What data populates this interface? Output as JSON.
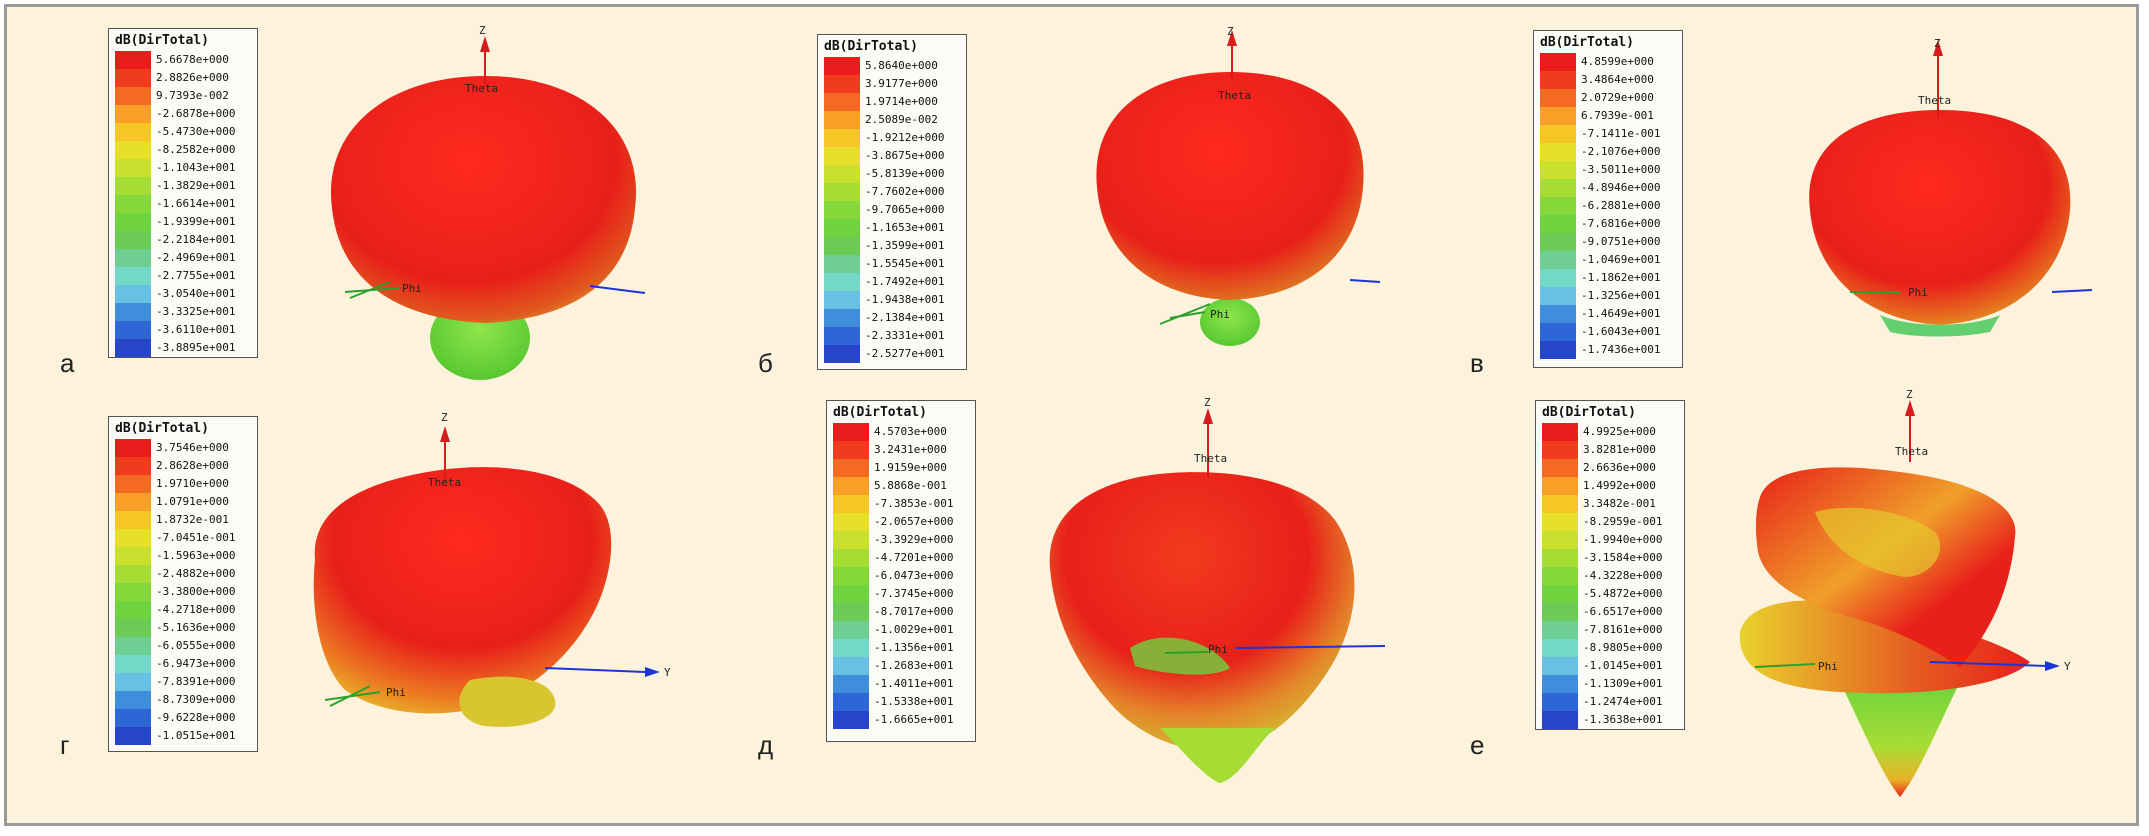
{
  "colors": {
    "scale": [
      "#ea1c1c",
      "#ef3b1e",
      "#f46a22",
      "#f79f26",
      "#f5c625",
      "#e7df29",
      "#c9e02e",
      "#a6dd34",
      "#86d83a",
      "#6fd33f",
      "#6bcb55",
      "#6fcf93",
      "#73d8c6",
      "#66c1e2",
      "#3f8ddb",
      "#2f66d6",
      "#2745c9"
    ],
    "frame": "#fdf3dc",
    "axis_z": "#d81b1b",
    "axis_y": "#1b34d8",
    "axis_x": "#2ca02c"
  },
  "axis_labels": {
    "z": "Z",
    "theta": "Theta",
    "phi": "Phi",
    "y": "Y"
  },
  "panels": [
    {
      "label": "а",
      "legend": {
        "title": "dB(DirTotal)",
        "ticks": [
          "5.6678e+000",
          "2.8826e+000",
          "9.7393e-002",
          "-2.6878e+000",
          "-5.4730e+000",
          "-8.2582e+000",
          "-1.1043e+001",
          "-1.3829e+001",
          "-1.6614e+001",
          "-1.9399e+001",
          "-2.2184e+001",
          "-2.4969e+001",
          "-2.7755e+001",
          "-3.0540e+001",
          "-3.3325e+001",
          "-3.6110e+001",
          "-3.8895e+001"
        ]
      }
    },
    {
      "label": "б",
      "legend": {
        "title": "dB(DirTotal)",
        "ticks": [
          "5.8640e+000",
          "3.9177e+000",
          "1.9714e+000",
          "2.5089e-002",
          "-1.9212e+000",
          "-3.8675e+000",
          "-5.8139e+000",
          "-7.7602e+000",
          "-9.7065e+000",
          "-1.1653e+001",
          "-1.3599e+001",
          "-1.5545e+001",
          "-1.7492e+001",
          "-1.9438e+001",
          "-2.1384e+001",
          "-2.3331e+001",
          "-2.5277e+001"
        ]
      }
    },
    {
      "label": "в",
      "legend": {
        "title": "dB(DirTotal)",
        "ticks": [
          "4.8599e+000",
          "3.4864e+000",
          "2.0729e+000",
          "6.7939e-001",
          "-7.1411e-001",
          "-2.1076e+000",
          "-3.5011e+000",
          "-4.8946e+000",
          "-6.2881e+000",
          "-7.6816e+000",
          "-9.0751e+000",
          "-1.0469e+001",
          "-1.1862e+001",
          "-1.3256e+001",
          "-1.4649e+001",
          "-1.6043e+001",
          "-1.7436e+001"
        ]
      }
    },
    {
      "label": "г",
      "legend": {
        "title": "dB(DirTotal)",
        "ticks": [
          "3.7546e+000",
          "2.8628e+000",
          "1.9710e+000",
          "1.0791e+000",
          "1.8732e-001",
          "-7.0451e-001",
          "-1.5963e+000",
          "-2.4882e+000",
          "-3.3800e+000",
          "-4.2718e+000",
          "-5.1636e+000",
          "-6.0555e+000",
          "-6.9473e+000",
          "-7.8391e+000",
          "-8.7309e+000",
          "-9.6228e+000",
          "-1.0515e+001"
        ]
      }
    },
    {
      "label": "д",
      "legend": {
        "title": "dB(DirTotal)",
        "ticks": [
          "4.5703e+000",
          "3.2431e+000",
          "1.9159e+000",
          "5.8868e-001",
          "-7.3853e-001",
          "-2.0657e+000",
          "-3.3929e+000",
          "-4.7201e+000",
          "-6.0473e+000",
          "-7.3745e+000",
          "-8.7017e+000",
          "-1.0029e+001",
          "-1.1356e+001",
          "-1.2683e+001",
          "-1.4011e+001",
          "-1.5338e+001",
          "-1.6665e+001"
        ]
      }
    },
    {
      "label": "е",
      "legend": {
        "title": "dB(DirTotal)",
        "ticks": [
          "4.9925e+000",
          "3.8281e+000",
          "2.6636e+000",
          "1.4992e+000",
          "3.3482e-001",
          "-8.2959e-001",
          "-1.9940e+000",
          "-3.1584e+000",
          "-4.3228e+000",
          "-5.4872e+000",
          "-6.6517e+000",
          "-7.8161e+000",
          "-8.9805e+000",
          "-1.0145e+001",
          "-1.1309e+001",
          "-1.2474e+001",
          "-1.3638e+001"
        ]
      }
    }
  ]
}
